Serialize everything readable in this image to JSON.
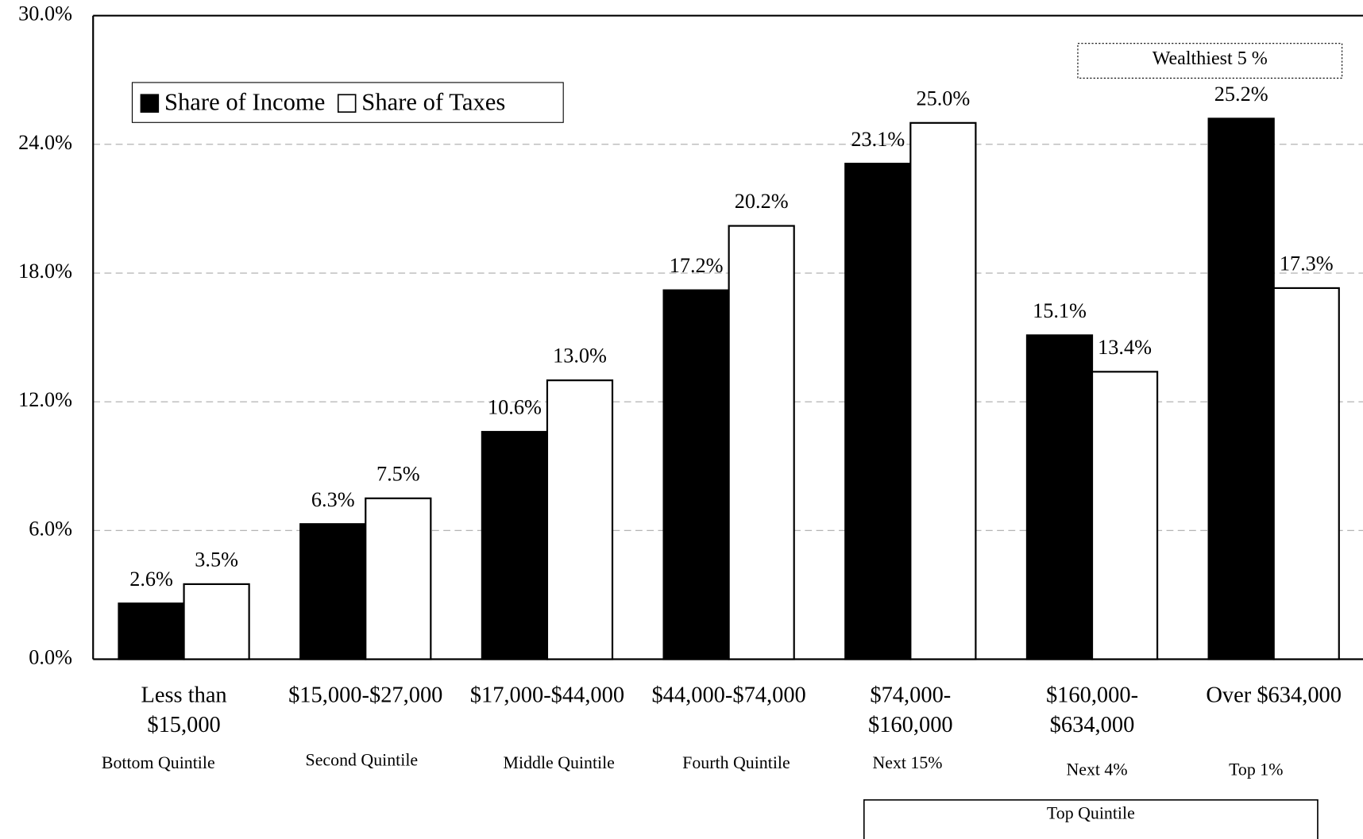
{
  "chart_data": {
    "type": "bar",
    "categories": [
      "Less than\n$15,000",
      "$15,000-$27,000",
      "$17,000-$44,000",
      "$44,000-$74,000",
      "$74,000-\n$160,000",
      "$160,000-\n$634,000",
      "Over $634,000"
    ],
    "groups": [
      "Bottom Quintile",
      "Second Quintile",
      "Middle Quintile",
      "Fourth Quintile",
      "Next 15%",
      "Next 4%",
      "Top 1%"
    ],
    "series": [
      {
        "name": "Share of Income",
        "color": "#000000",
        "values": [
          2.6,
          6.3,
          10.6,
          17.2,
          23.1,
          15.1,
          25.2
        ],
        "value_labels": [
          "2.6%",
          "6.3%",
          "10.6%",
          "17.2%",
          "23.1%",
          "15.1%",
          "25.2%"
        ]
      },
      {
        "name": "Share of Taxes",
        "color": "#ffffff",
        "values": [
          3.5,
          7.5,
          13.0,
          20.2,
          25.0,
          13.4,
          17.3
        ],
        "value_labels": [
          "3.5%",
          "7.5%",
          "13.0%",
          "20.2%",
          "25.0%",
          "13.4%",
          "17.3%"
        ]
      }
    ],
    "ylim": [
      0,
      30
    ],
    "yticks": [
      {
        "value": 0,
        "label": "0.0%"
      },
      {
        "value": 6,
        "label": "6.0%"
      },
      {
        "value": 12,
        "label": "12.0%"
      },
      {
        "value": 18,
        "label": "18.0%"
      },
      {
        "value": 24,
        "label": "24.0%"
      },
      {
        "value": 30,
        "label": "30.0%"
      }
    ],
    "grid": true,
    "legend": "top-left",
    "annotations": [
      "Wealthiest 5 %",
      "Top Quintile"
    ]
  }
}
